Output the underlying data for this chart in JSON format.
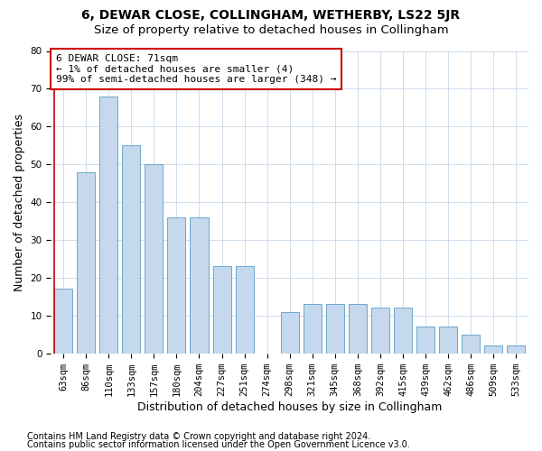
{
  "title": "6, DEWAR CLOSE, COLLINGHAM, WETHERBY, LS22 5JR",
  "subtitle": "Size of property relative to detached houses in Collingham",
  "xlabel": "Distribution of detached houses by size in Collingham",
  "ylabel": "Number of detached properties",
  "categories": [
    "63sqm",
    "86sqm",
    "110sqm",
    "133sqm",
    "157sqm",
    "180sqm",
    "204sqm",
    "227sqm",
    "251sqm",
    "274sqm",
    "298sqm",
    "321sqm",
    "345sqm",
    "368sqm",
    "392sqm",
    "415sqm",
    "439sqm",
    "462sqm",
    "486sqm",
    "509sqm",
    "533sqm"
  ],
  "values": [
    17,
    48,
    68,
    55,
    50,
    36,
    36,
    23,
    23,
    0,
    11,
    13,
    13,
    13,
    12,
    12,
    7,
    7,
    5,
    2,
    2
  ],
  "bar_color": "#c5d8ed",
  "bar_edge_color": "#5b9dc9",
  "annotation_text": "6 DEWAR CLOSE: 71sqm\n← 1% of detached houses are smaller (4)\n99% of semi-detached houses are larger (348) →",
  "annotation_box_color": "#ffffff",
  "annotation_box_edge_color": "#cc0000",
  "ylim": [
    0,
    80
  ],
  "yticks": [
    0,
    10,
    20,
    30,
    40,
    50,
    60,
    70,
    80
  ],
  "footer_line1": "Contains HM Land Registry data © Crown copyright and database right 2024.",
  "footer_line2": "Contains public sector information licensed under the Open Government Licence v3.0.",
  "background_color": "#ffffff",
  "grid_color": "#c8d8e8",
  "title_fontsize": 10,
  "subtitle_fontsize": 9.5,
  "axis_label_fontsize": 9,
  "tick_fontsize": 7.5,
  "footer_fontsize": 7,
  "red_line_x": 0
}
